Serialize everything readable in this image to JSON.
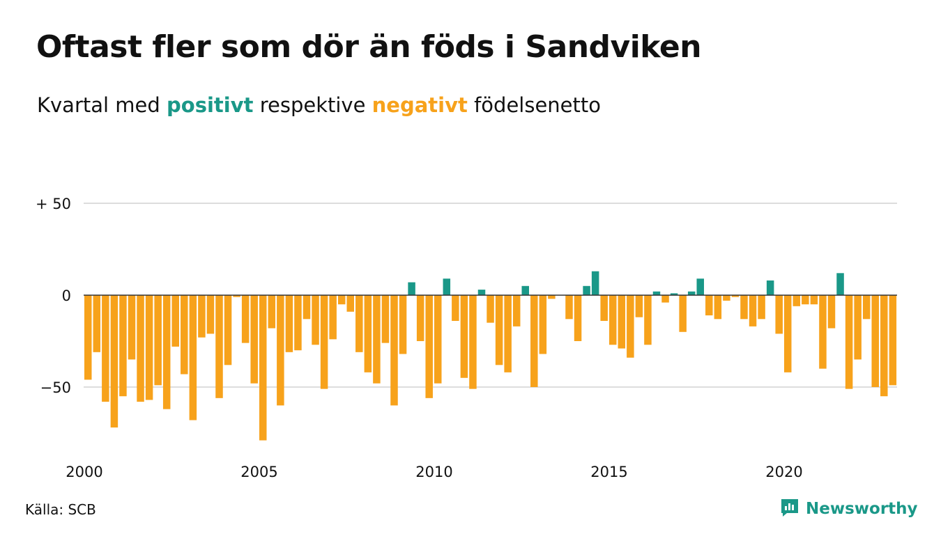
{
  "header": {
    "title": "Oftast fler som dör än föds i Sandviken",
    "subtitle_pre": "Kvartal med",
    "subtitle_pos": "positivt",
    "subtitle_mid": "respektive",
    "subtitle_neg": "negativt",
    "subtitle_post": "födelsenetto"
  },
  "footer": {
    "source": "Källa: SCB",
    "brand": "Newsworthy"
  },
  "colors": {
    "positive": "#1a9888",
    "negative": "#f7a21b",
    "grid": "#dddddd",
    "zero_line": "#333333"
  },
  "chart_data": {
    "type": "bar",
    "title": "Oftast fler som dör än föds i Sandviken",
    "subtitle": "Kvartal med positivt respektive negativt födelsenetto",
    "ylim": [
      -80,
      50
    ],
    "y_ticks": [
      50,
      0,
      -50
    ],
    "y_tick_labels": [
      "+ 50",
      "0",
      "−50"
    ],
    "x_ticks": [
      2000,
      2005,
      2010,
      2015,
      2020
    ],
    "x_tick_labels": [
      "2000",
      "2005",
      "2010",
      "2015",
      "2020"
    ],
    "grid": true,
    "x_start": 2000.0,
    "period": "quarter",
    "values": [
      -46,
      -31,
      -58,
      -72,
      -55,
      -35,
      -58,
      -57,
      -49,
      -62,
      -28,
      -43,
      -68,
      -23,
      -21,
      -56,
      -38,
      -1,
      -26,
      -48,
      -79,
      -18,
      -60,
      -31,
      -30,
      -13,
      -27,
      -51,
      -24,
      -5,
      -9,
      -31,
      -42,
      -48,
      -26,
      -60,
      -32,
      7,
      -25,
      -56,
      -48,
      9,
      -14,
      -45,
      -51,
      3,
      -15,
      -38,
      -42,
      -17,
      5,
      -50,
      -32,
      -2,
      0,
      -13,
      -25,
      5,
      13,
      -14,
      -27,
      -29,
      -34,
      -12,
      -27,
      2,
      -4,
      1,
      -20,
      2,
      9,
      -11,
      -13,
      -3,
      -1,
      -13,
      -17,
      -13,
      8,
      -21,
      -42,
      -6,
      -5,
      -5,
      -40,
      -18,
      12,
      -51,
      -35,
      -13,
      -50,
      -55,
      -49
    ]
  }
}
